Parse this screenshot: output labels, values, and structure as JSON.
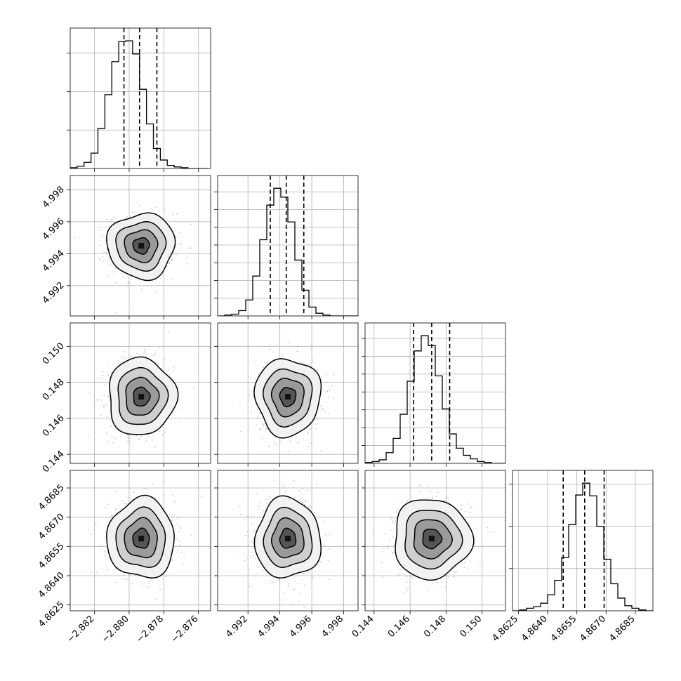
{
  "chart_data": {
    "type": "corner",
    "title": "",
    "parameters": [
      {
        "mean": -2.8793,
        "sd": 0.00095,
        "range": [
          -2.8834,
          -2.8753
        ],
        "ticks": [
          -2.882,
          -2.88,
          -2.878,
          -2.876
        ],
        "tick_labels": [
          "−2.882",
          "−2.880",
          "−2.878",
          "−2.876"
        ],
        "quantiles": [
          -2.8803,
          -2.8794,
          -2.8784
        ],
        "hist": {
          "edges_start": -2.8834,
          "bin_width": 0.0004,
          "counts": [
            1,
            3,
            8,
            20,
            52,
            96,
            139,
            165,
            166,
            149,
            103,
            58,
            26,
            11,
            4,
            2,
            1,
            0,
            0,
            0
          ]
        }
      },
      {
        "mean": 4.9945,
        "sd": 0.001,
        "range": [
          4.9901,
          4.9989
        ],
        "ticks": [
          4.992,
          4.994,
          4.996,
          4.998
        ],
        "tick_labels": [
          "4.992",
          "4.994",
          "4.996",
          "4.998"
        ],
        "quantiles": [
          4.9934,
          4.9944,
          4.9955
        ],
        "hist": {
          "edges_start": 4.9901,
          "bin_width": 0.00044,
          "counts": [
            0,
            1,
            2,
            6,
            18,
            45,
            86,
            125,
            144,
            134,
            106,
            63,
            29,
            10,
            3,
            1,
            0,
            0,
            0,
            0
          ]
        }
      },
      {
        "mean": 0.1472,
        "sd": 0.00105,
        "range": [
          0.1435,
          0.1513
        ],
        "ticks": [
          0.144,
          0.146,
          0.148,
          0.15
        ],
        "tick_labels": [
          "0.144",
          "0.146",
          "0.148",
          "0.150"
        ],
        "quantiles": [
          0.1462,
          0.1472,
          0.1482
        ],
        "hist": {
          "edges_start": 0.1435,
          "bin_width": 0.00039,
          "counts": [
            1,
            2,
            4,
            12,
            28,
            55,
            92,
            126,
            143,
            132,
            98,
            61,
            33,
            17,
            9,
            5,
            2,
            1,
            0,
            0
          ]
        }
      },
      {
        "mean": 4.8659,
        "sd": 0.001,
        "range": [
          4.8622,
          4.8694
        ],
        "ticks": [
          4.8625,
          4.864,
          4.8655,
          4.867,
          4.8685
        ],
        "tick_labels": [
          "4.8625",
          "4.8640",
          "4.8655",
          "4.8670",
          "4.8685"
        ],
        "quantiles": [
          4.8648,
          4.8659,
          4.8669
        ],
        "hist": {
          "edges_start": 4.8622,
          "bin_width": 0.00036,
          "counts": [
            0,
            1,
            3,
            5,
            9,
            19,
            36,
            63,
            102,
            137,
            151,
            136,
            100,
            61,
            32,
            15,
            6,
            3,
            1,
            0
          ]
        }
      }
    ],
    "grid": true,
    "contour_levels": 4,
    "histogram_style": "step",
    "quantile_lines": "dashed"
  }
}
